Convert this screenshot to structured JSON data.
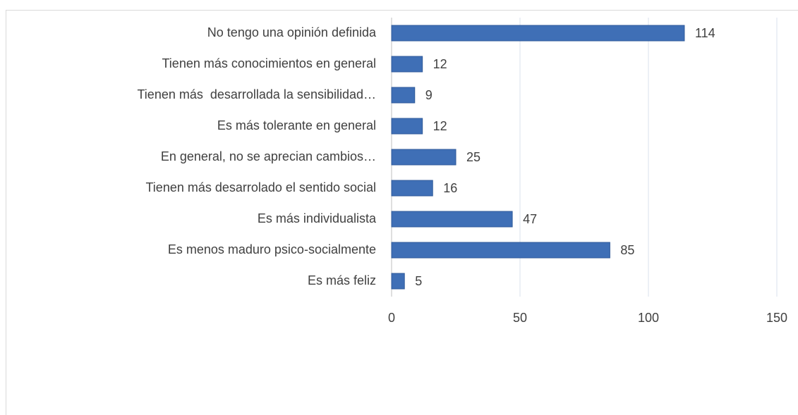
{
  "chart_data": {
    "type": "barh",
    "categories": [
      "No tengo una opinión definida",
      "Tienen más conocimientos en general",
      "Tienen más  desarrollada la sensibilidad…",
      "Es más tolerante en general",
      "En general, no se aprecian cambios…",
      "Tienen más desarrolado el sentido social",
      "Es más individualista",
      "Es menos maduro psico-socialmente",
      "Es más feliz"
    ],
    "values": [
      114,
      12,
      9,
      12,
      25,
      16,
      47,
      85,
      5
    ],
    "color": "#3f6fb6",
    "xlim": [
      0,
      150
    ],
    "xticks": [
      0,
      50,
      100,
      150
    ],
    "grid": true
  }
}
